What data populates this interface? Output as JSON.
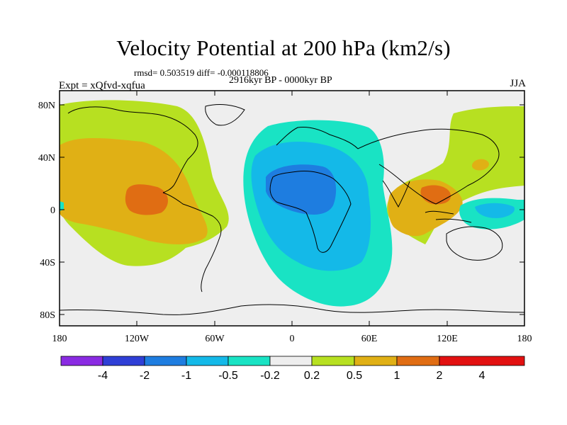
{
  "title": "Velocity Potential at 200 hPa (km2/s)",
  "stats": "rmsd= 0.503519 diff= -0.000118806",
  "experiment": "Expt = xQfvd-xqfua",
  "period": "2916kyr BP - 0000kyr BP",
  "season": "JJA",
  "lat_ticks": [
    "80N",
    "40N",
    "0",
    "40S",
    "80S"
  ],
  "lon_ticks": [
    "180",
    "120W",
    "60W",
    "0",
    "60E",
    "120E",
    "180"
  ],
  "colorbar": {
    "labels": [
      "-4",
      "-2",
      "-1",
      "-0.5",
      "-0.2",
      "0.2",
      "0.5",
      "1",
      "2",
      "4"
    ],
    "colors": [
      "#8a2be2",
      "#2f3fd6",
      "#1e7de0",
      "#14b9e8",
      "#19e3c4",
      "#eeeeee",
      "#b7e021",
      "#e0b015",
      "#e06d13",
      "#e21111"
    ]
  },
  "colors": {
    "land_bg": "#eeeeee",
    "coast": "#000000",
    "level_neg02": "#19e3c4",
    "level_neg05": "#14b9e8",
    "level_neg1": "#1e7de0",
    "level_pos02": "#b7e021",
    "level_pos05": "#e0b015",
    "level_pos1": "#e06d13"
  }
}
